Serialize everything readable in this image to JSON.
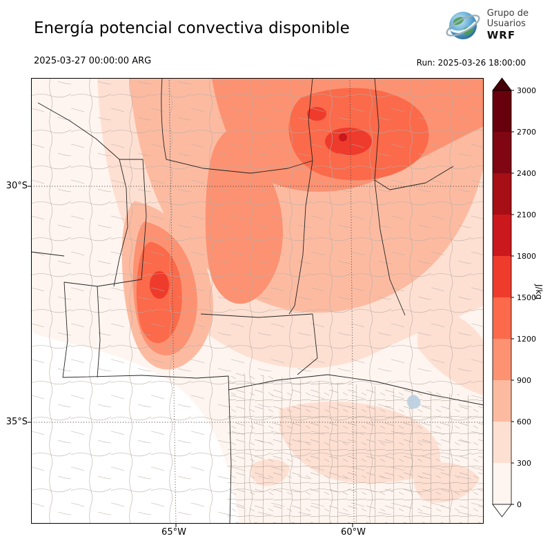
{
  "header": {
    "title": "Energía potencial convectiva disponible",
    "valid_time": "2025-03-27 00:00:00 ARG",
    "run_label": "Run: 2025-03-26 18:00:00",
    "logo": {
      "line1": "Grupo de",
      "line2": "Usuarios",
      "line3": "WRF"
    }
  },
  "map": {
    "lat_ticks": [
      {
        "label": "30°S"
      },
      {
        "label": "35°S"
      }
    ],
    "lon_ticks": [
      {
        "label": "65°W"
      },
      {
        "label": "60°W"
      }
    ]
  },
  "colorbar": {
    "unit": "J/kg",
    "tick_values": [
      "0",
      "300",
      "600",
      "900",
      "1200",
      "1500",
      "1800",
      "2100",
      "2400",
      "2700",
      "3000"
    ],
    "colors": [
      "#fff5f0",
      "#fee0d2",
      "#fcbba1",
      "#fc9272",
      "#fb6a4a",
      "#ef3b2c",
      "#cb181d",
      "#a50f15",
      "#7f0612",
      "#67000d"
    ],
    "over_color": "#450008",
    "under_color": "#ffffff"
  },
  "chart_data": {
    "type": "heatmap",
    "title": "Energía potencial convectiva disponible",
    "unit": "J/kg",
    "levels": [
      0,
      300,
      600,
      900,
      1200,
      1500,
      1800,
      2100,
      2400,
      2700,
      3000
    ],
    "lat_tick_labels": [
      "30°S",
      "35°S"
    ],
    "lon_tick_labels": [
      "65°W",
      "60°W"
    ],
    "legend_position": "right-colorbar",
    "notes": "Filled-contour CAPE field over central-northern Argentina; maxima (1200-1800 J/kg) northeast sector and west-central sector; near 0 in the southwest."
  }
}
